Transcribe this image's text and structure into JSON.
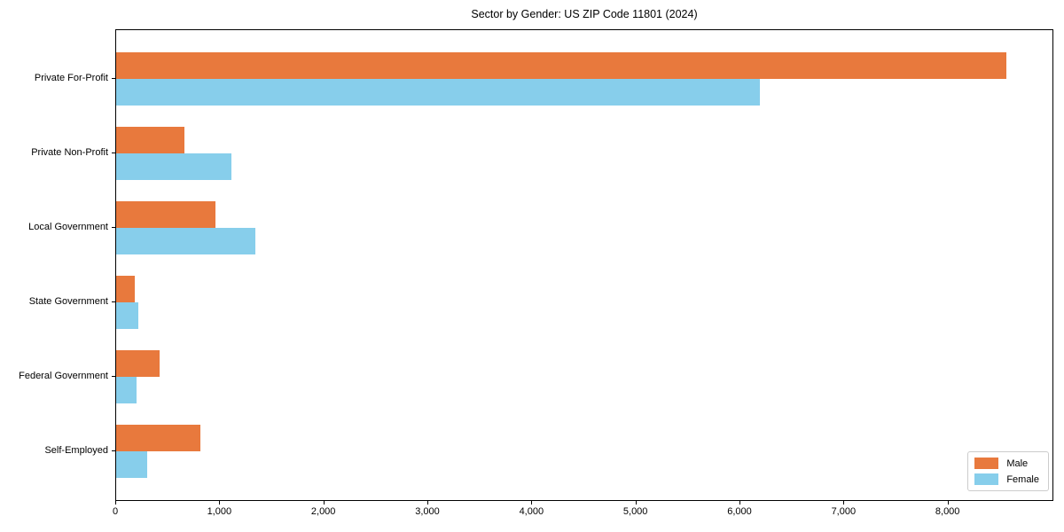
{
  "chart_data": {
    "type": "bar",
    "orientation": "horizontal",
    "title": "Sector by Gender: US ZIP Code 11801 (2024)",
    "categories": [
      "Private For-Profit",
      "Private Non-Profit",
      "Local Government",
      "State Government",
      "Federal Government",
      "Self-Employed"
    ],
    "series": [
      {
        "name": "Male",
        "color": "#e8793d",
        "values": [
          8560,
          660,
          955,
          180,
          415,
          810
        ]
      },
      {
        "name": "Female",
        "color": "#87ceeb",
        "values": [
          6190,
          1105,
          1340,
          215,
          195,
          295
        ]
      }
    ],
    "xlim": [
      0,
      9000
    ],
    "xticks": [
      0,
      1000,
      2000,
      3000,
      4000,
      5000,
      6000,
      7000,
      8000
    ],
    "xtick_labels": [
      "0",
      "1,000",
      "2,000",
      "3,000",
      "4,000",
      "5,000",
      "6,000",
      "7,000",
      "8,000"
    ],
    "xlabel": "",
    "ylabel": "",
    "grid": false,
    "legend_position": "lower right",
    "background_color": "#ffffff",
    "axis_color": "#000000"
  }
}
